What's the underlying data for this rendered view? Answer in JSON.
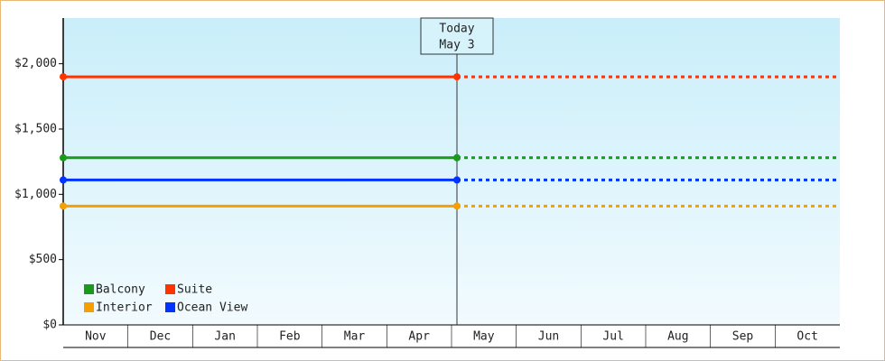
{
  "chart_data": {
    "type": "line",
    "categories": [
      "Nov",
      "Dec",
      "Jan",
      "Feb",
      "Mar",
      "Apr",
      "May",
      "Jun",
      "Jul",
      "Aug",
      "Sep",
      "Oct"
    ],
    "today_label": [
      "Today",
      "May 3"
    ],
    "series": [
      {
        "name": "Balcony",
        "color": "#1a9a1a",
        "value": 1280
      },
      {
        "name": "Suite",
        "color": "#ff3300",
        "value": 1900
      },
      {
        "name": "Interior",
        "color": "#f5a000",
        "value": 910
      },
      {
        "name": "Ocean View",
        "color": "#0033ff",
        "value": 1110
      }
    ],
    "ylim": [
      0,
      2350
    ],
    "yticks": [
      {
        "value": 0,
        "label": "$0"
      },
      {
        "value": 500,
        "label": "$500"
      },
      {
        "value": 1000,
        "label": "$1,000"
      },
      {
        "value": 1500,
        "label": "$1,500"
      },
      {
        "value": 2000,
        "label": "$2,000"
      }
    ]
  }
}
